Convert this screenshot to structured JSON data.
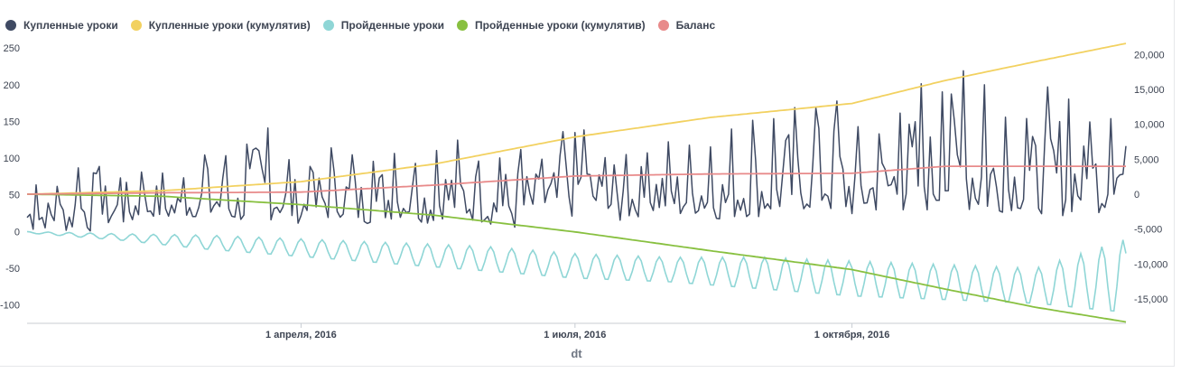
{
  "legend": [
    {
      "label": "Купленные уроки",
      "color": "#3f4a63"
    },
    {
      "label": "Купленные уроки (кумулятив)",
      "color": "#f2d160"
    },
    {
      "label": "Пройденные уроки",
      "color": "#8fd6d6"
    },
    {
      "label": "Пройденные уроки (кумулятив)",
      "color": "#88c040"
    },
    {
      "label": "Баланс",
      "color": "#e88a8a"
    }
  ],
  "chart_data": {
    "type": "line",
    "xlabel": "dt",
    "x_range": [
      "2016-01-01",
      "2016-12-31"
    ],
    "x_ticks": [
      {
        "date": "2016-04-01",
        "label": "1 апреля, 2016"
      },
      {
        "date": "2016-07-01",
        "label": "1 июля, 2016"
      },
      {
        "date": "2016-10-01",
        "label": "1 октября, 2016"
      }
    ],
    "y_left": {
      "range": [
        -125,
        260
      ],
      "ticks": [
        -100,
        -50,
        0,
        50,
        100,
        150,
        200,
        250
      ]
    },
    "y_right": {
      "range": [
        -18500,
        22000
      ],
      "ticks": [
        -15000,
        -10000,
        -5000,
        0,
        5000,
        10000,
        15000,
        20000
      ],
      "tick_labels": [
        "-15,000",
        "-10,000",
        "-5,000",
        "0",
        "5,000",
        "10,000",
        "15,000",
        "20,000"
      ]
    },
    "series": [
      {
        "name": "Купленные уроки",
        "axis": "left",
        "color": "#3f4a63",
        "x": [
          "2016-01-01",
          "2016-01-08",
          "2016-01-15",
          "2016-01-22",
          "2016-01-29",
          "2016-02-05",
          "2016-02-12",
          "2016-02-19",
          "2016-02-26",
          "2016-03-04",
          "2016-03-11",
          "2016-03-18",
          "2016-03-25",
          "2016-04-01",
          "2016-04-08",
          "2016-04-15",
          "2016-04-22",
          "2016-04-29",
          "2016-05-06",
          "2016-05-13",
          "2016-05-20",
          "2016-05-27",
          "2016-06-03",
          "2016-06-10",
          "2016-06-17",
          "2016-06-24",
          "2016-07-01",
          "2016-07-08",
          "2016-07-15",
          "2016-07-22",
          "2016-07-29",
          "2016-08-05",
          "2016-08-12",
          "2016-08-19",
          "2016-08-26",
          "2016-09-02",
          "2016-09-09",
          "2016-09-16",
          "2016-09-23",
          "2016-09-30",
          "2016-10-07",
          "2016-10-14",
          "2016-10-21",
          "2016-10-28",
          "2016-11-04",
          "2016-11-11",
          "2016-11-18",
          "2016-11-25",
          "2016-12-02",
          "2016-12-09",
          "2016-12-16",
          "2016-12-23",
          "2016-12-31"
        ],
        "low": [
          0,
          5,
          0,
          0,
          10,
          10,
          20,
          15,
          20,
          10,
          15,
          10,
          20,
          10,
          15,
          20,
          10,
          15,
          20,
          10,
          20,
          15,
          10,
          0,
          20,
          15,
          20,
          25,
          10,
          20,
          25,
          20,
          25,
          15,
          20,
          20,
          25,
          30,
          25,
          20,
          25,
          30,
          20,
          30,
          25,
          20,
          25,
          30,
          25,
          20,
          30,
          25,
          55
        ],
        "high": [
          80,
          60,
          80,
          125,
          70,
          95,
          85,
          75,
          90,
          135,
          80,
          180,
          110,
          90,
          115,
          120,
          95,
          130,
          100,
          110,
          130,
          120,
          95,
          130,
          100,
          115,
          180,
          110,
          120,
          115,
          130,
          115,
          125,
          120,
          170,
          140,
          185,
          150,
          215,
          150,
          135,
          155,
          220,
          185,
          260,
          240,
          175,
          155,
          180,
          220,
          150,
          190,
          145
        ]
      },
      {
        "name": "Купленные уроки (кумулятив)",
        "axis": "right",
        "color": "#f2d160",
        "x": [
          "2016-01-01",
          "2016-02-15",
          "2016-04-01",
          "2016-05-15",
          "2016-07-01",
          "2016-08-15",
          "2016-10-01",
          "2016-11-01",
          "2016-12-01",
          "2016-12-31"
        ],
        "y": [
          0,
          500,
          1800,
          4300,
          8200,
          11000,
          13000,
          16300,
          19000,
          21600
        ]
      },
      {
        "name": "Пройденные уроки",
        "axis": "left",
        "color": "#8fd6d6",
        "x": [
          "2016-01-01",
          "2016-02-01",
          "2016-03-01",
          "2016-04-01",
          "2016-05-01",
          "2016-06-01",
          "2016-07-01",
          "2016-08-01",
          "2016-09-01",
          "2016-10-01",
          "2016-11-01",
          "2016-12-01",
          "2016-12-31"
        ],
        "low": [
          -2,
          -12,
          -25,
          -35,
          -45,
          -55,
          -65,
          -70,
          -80,
          -90,
          -95,
          -100,
          -115
        ],
        "high": [
          0,
          -3,
          -5,
          -10,
          -15,
          -20,
          -30,
          -35,
          -35,
          -40,
          -45,
          -50,
          -10
        ]
      },
      {
        "name": "Пройденные уроки (кумулятив)",
        "axis": "right",
        "color": "#88c040",
        "x": [
          "2016-01-01",
          "2016-02-15",
          "2016-04-01",
          "2016-05-15",
          "2016-07-01",
          "2016-08-15",
          "2016-10-01",
          "2016-11-01",
          "2016-12-01",
          "2016-12-31"
        ],
        "y": [
          0,
          -300,
          -1500,
          -3000,
          -5400,
          -8100,
          -10800,
          -13600,
          -16200,
          -18300
        ]
      },
      {
        "name": "Баланс",
        "axis": "right",
        "color": "#e88a8a",
        "x": [
          "2016-01-01",
          "2016-02-15",
          "2016-04-01",
          "2016-05-15",
          "2016-07-01",
          "2016-08-15",
          "2016-10-01",
          "2016-11-01",
          "2016-12-01",
          "2016-12-31"
        ],
        "y": [
          0,
          200,
          300,
          1300,
          2600,
          2900,
          3000,
          4000,
          4000,
          4000
        ]
      }
    ]
  }
}
